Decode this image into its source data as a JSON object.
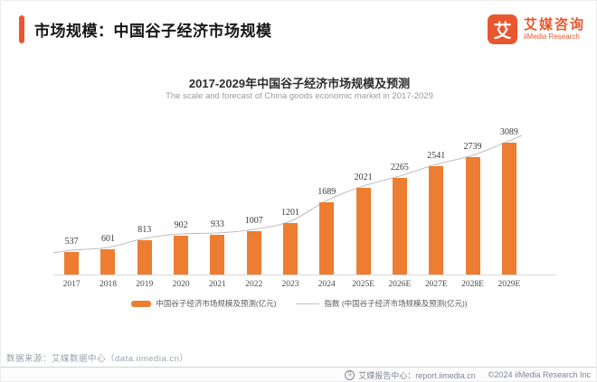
{
  "header": {
    "title": "市场规模：中国谷子经济市场规模",
    "logo": {
      "mark_text": "艾",
      "name_cn": "艾媒咨询",
      "name_en": "iiMedia Research"
    }
  },
  "chart_data": {
    "type": "bar",
    "title": "2017-2029年中国谷子经济市场规模及预测",
    "subtitle": "The scale and forecast of China goods economic market in 2017-2029",
    "categories": [
      "2017",
      "2018",
      "2019",
      "2020",
      "2021",
      "2022",
      "2023",
      "2024",
      "2025E",
      "2026E",
      "2027E",
      "2028E",
      "2029E"
    ],
    "series": [
      {
        "name": "中国谷子经济市场规模及预测(亿元)",
        "type": "bar",
        "color": "#ED7D31",
        "values": [
          537,
          601,
          813,
          902,
          933,
          1007,
          1201,
          1689,
          2021,
          2265,
          2541,
          2739,
          3089
        ]
      },
      {
        "name": "指数 (中国谷子经济市场规模及预测(亿元))",
        "type": "trendline",
        "color": "#BFBFBF"
      }
    ],
    "ylim": [
      0,
      3700
    ],
    "grid": false,
    "legend_position": "bottom",
    "value_labels": true
  },
  "footer": {
    "source": "数据来源：艾媒数据中心（data.iimedia.cn）",
    "report_center": "艾媒报告中心：report.iimedia.cn",
    "copyright": "©2024  iiMedia Research Inc"
  },
  "colors": {
    "accent": "#E8572E",
    "bar": "#ED7D31",
    "trendline": "#BFBFBF"
  }
}
